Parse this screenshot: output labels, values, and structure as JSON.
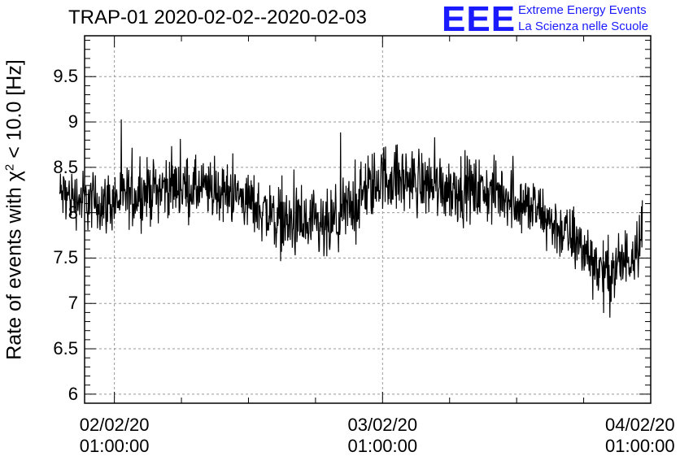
{
  "chart_data": {
    "type": "line",
    "title": "TRAP-01 2020-02-02--2020-02-03",
    "ylabel_prefix": "Rate of events with ",
    "ylabel_chi": "χ",
    "ylabel_sup": "2",
    "ylabel_suffix": " < 10.0 [Hz]",
    "xlabel": "",
    "ylim": [
      5.9,
      9.95
    ],
    "xlim": [
      "2020-02-01 22:20",
      "2020-02-04 01:00"
    ],
    "grid": true,
    "y_ticks": [
      {
        "value": 6,
        "label": "6"
      },
      {
        "value": 6.5,
        "label": "6.5"
      },
      {
        "value": 7,
        "label": "7"
      },
      {
        "value": 7.5,
        "label": "7.5"
      },
      {
        "value": 8,
        "label": "8"
      },
      {
        "value": 8.5,
        "label": "8.5"
      },
      {
        "value": 9,
        "label": "9"
      },
      {
        "value": 9.5,
        "label": "9.5"
      }
    ],
    "x_ticks": [
      {
        "value": "2020-02-02 01:00:00",
        "date": "02/02/20",
        "time": "01:00:00"
      },
      {
        "value": "2020-02-03 01:00:00",
        "date": "03/02/20",
        "time": "01:00:00"
      },
      {
        "value": "2020-02-04 01:00:00",
        "date": "04/02/20",
        "time": "01:00:00"
      }
    ],
    "series": [
      {
        "color": "#000000",
        "x": [
          "2020-02-01 20:06",
          "2020-02-02 00:00",
          "2020-02-02 06:00",
          "2020-02-02 12:00",
          "2020-02-02 16:00",
          "2020-02-02 20:00",
          "2020-02-03 01:00",
          "2020-02-03 06:00",
          "2020-02-03 12:00",
          "2020-02-03 15:00",
          "2020-02-03 19:00",
          "2020-02-03 21:00",
          "2020-02-03 23:00",
          "2020-02-04 00:15"
        ],
        "values": [
          8.2,
          8.1,
          8.3,
          8.2,
          7.9,
          7.8,
          8.4,
          8.3,
          8.2,
          8.0,
          7.6,
          7.3,
          7.5,
          7.8
        ],
        "band": [
          0.45,
          0.5,
          0.5,
          0.45,
          0.55,
          0.6,
          0.55,
          0.55,
          0.5,
          0.5,
          0.5,
          0.55,
          0.55,
          0.55
        ]
      }
    ]
  },
  "logo": {
    "mark": "EEE",
    "line1": "Extreme Energy Events",
    "line2": "La Scienza nelle Scuole",
    "color": "#1a1aff"
  }
}
